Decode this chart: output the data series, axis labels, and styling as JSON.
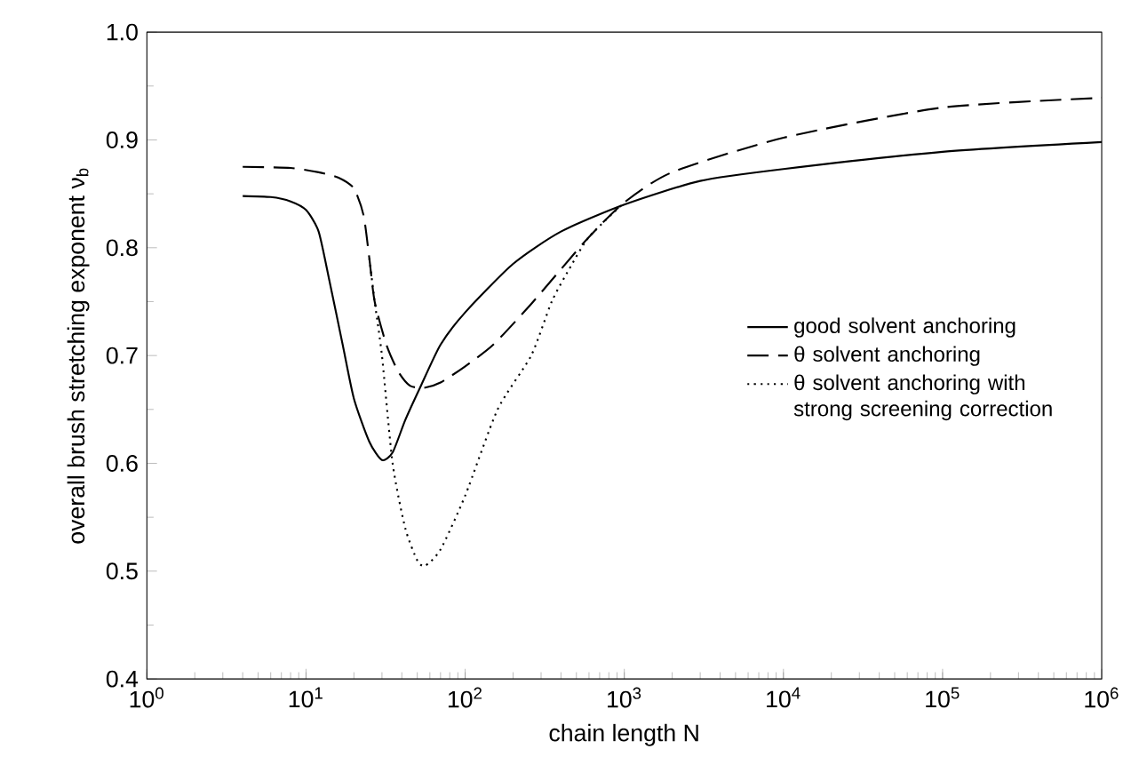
{
  "chart_data": {
    "type": "line",
    "xlabel": "chain length  N",
    "ylabel": "overall brush stretching exponent  ν$_{b}$",
    "log": "x",
    "xlim": [
      1,
      1000000
    ],
    "ylim": [
      0.4,
      1.0
    ],
    "xticks": [
      {
        "value": 1,
        "label": "10$^{0}$"
      },
      {
        "value": 10,
        "label": "10$^{1}$"
      },
      {
        "value": 100,
        "label": "10$^{2}$"
      },
      {
        "value": 1000,
        "label": "10$^{3}$"
      },
      {
        "value": 10000,
        "label": "10$^{4}$"
      },
      {
        "value": 100000,
        "label": "10$^{5}$"
      },
      {
        "value": 1000000,
        "label": "10$^{6}$"
      }
    ],
    "yticks": [
      {
        "value": 0.4,
        "label": "0.4"
      },
      {
        "value": 0.5,
        "label": "0.5"
      },
      {
        "value": 0.6,
        "label": "0.6"
      },
      {
        "value": 0.7,
        "label": "0.7"
      },
      {
        "value": 0.8,
        "label": "0.8"
      },
      {
        "value": 0.9,
        "label": "0.9"
      },
      {
        "value": 1.0,
        "label": "1.0"
      }
    ],
    "grid": false,
    "legend": "right",
    "marker": "none",
    "series": [
      {
        "name": "good solvent anchoring",
        "color": "#000000",
        "line_style": "solid",
        "x": [
          4,
          6,
          8,
          10,
          12,
          14,
          17,
          20,
          25,
          30,
          35,
          42,
          52,
          70,
          100,
          200,
          400,
          1000,
          3000,
          10000,
          100000,
          1000000
        ],
        "values": [
          0.848,
          0.847,
          0.843,
          0.835,
          0.815,
          0.77,
          0.71,
          0.66,
          0.62,
          0.603,
          0.61,
          0.64,
          0.67,
          0.71,
          0.74,
          0.785,
          0.815,
          0.84,
          0.862,
          0.873,
          0.889,
          0.898
        ]
      },
      {
        "name": "θ solvent anchoring",
        "color": "#000000",
        "line_style": "dashed",
        "x": [
          4,
          8,
          12,
          16,
          20,
          23,
          25,
          27,
          32,
          38,
          45,
          55,
          70,
          100,
          150,
          250,
          400,
          600,
          1000,
          2000,
          10000,
          100000,
          1000000
        ],
        "values": [
          0.875,
          0.874,
          0.87,
          0.865,
          0.855,
          0.83,
          0.79,
          0.75,
          0.71,
          0.685,
          0.672,
          0.67,
          0.675,
          0.69,
          0.71,
          0.745,
          0.78,
          0.81,
          0.842,
          0.87,
          0.902,
          0.93,
          0.939
        ]
      },
      {
        "name": "θ solvent anchoring with strong screening correction",
        "color": "#000000",
        "line_style": "dotted",
        "x": [
          25,
          27,
          30,
          35,
          42,
          50,
          56,
          70,
          100,
          160,
          260,
          350,
          450,
          600,
          1000
        ],
        "values": [
          0.79,
          0.75,
          0.7,
          0.6,
          0.54,
          0.51,
          0.505,
          0.52,
          0.57,
          0.65,
          0.7,
          0.75,
          0.78,
          0.81,
          0.842
        ]
      }
    ]
  }
}
